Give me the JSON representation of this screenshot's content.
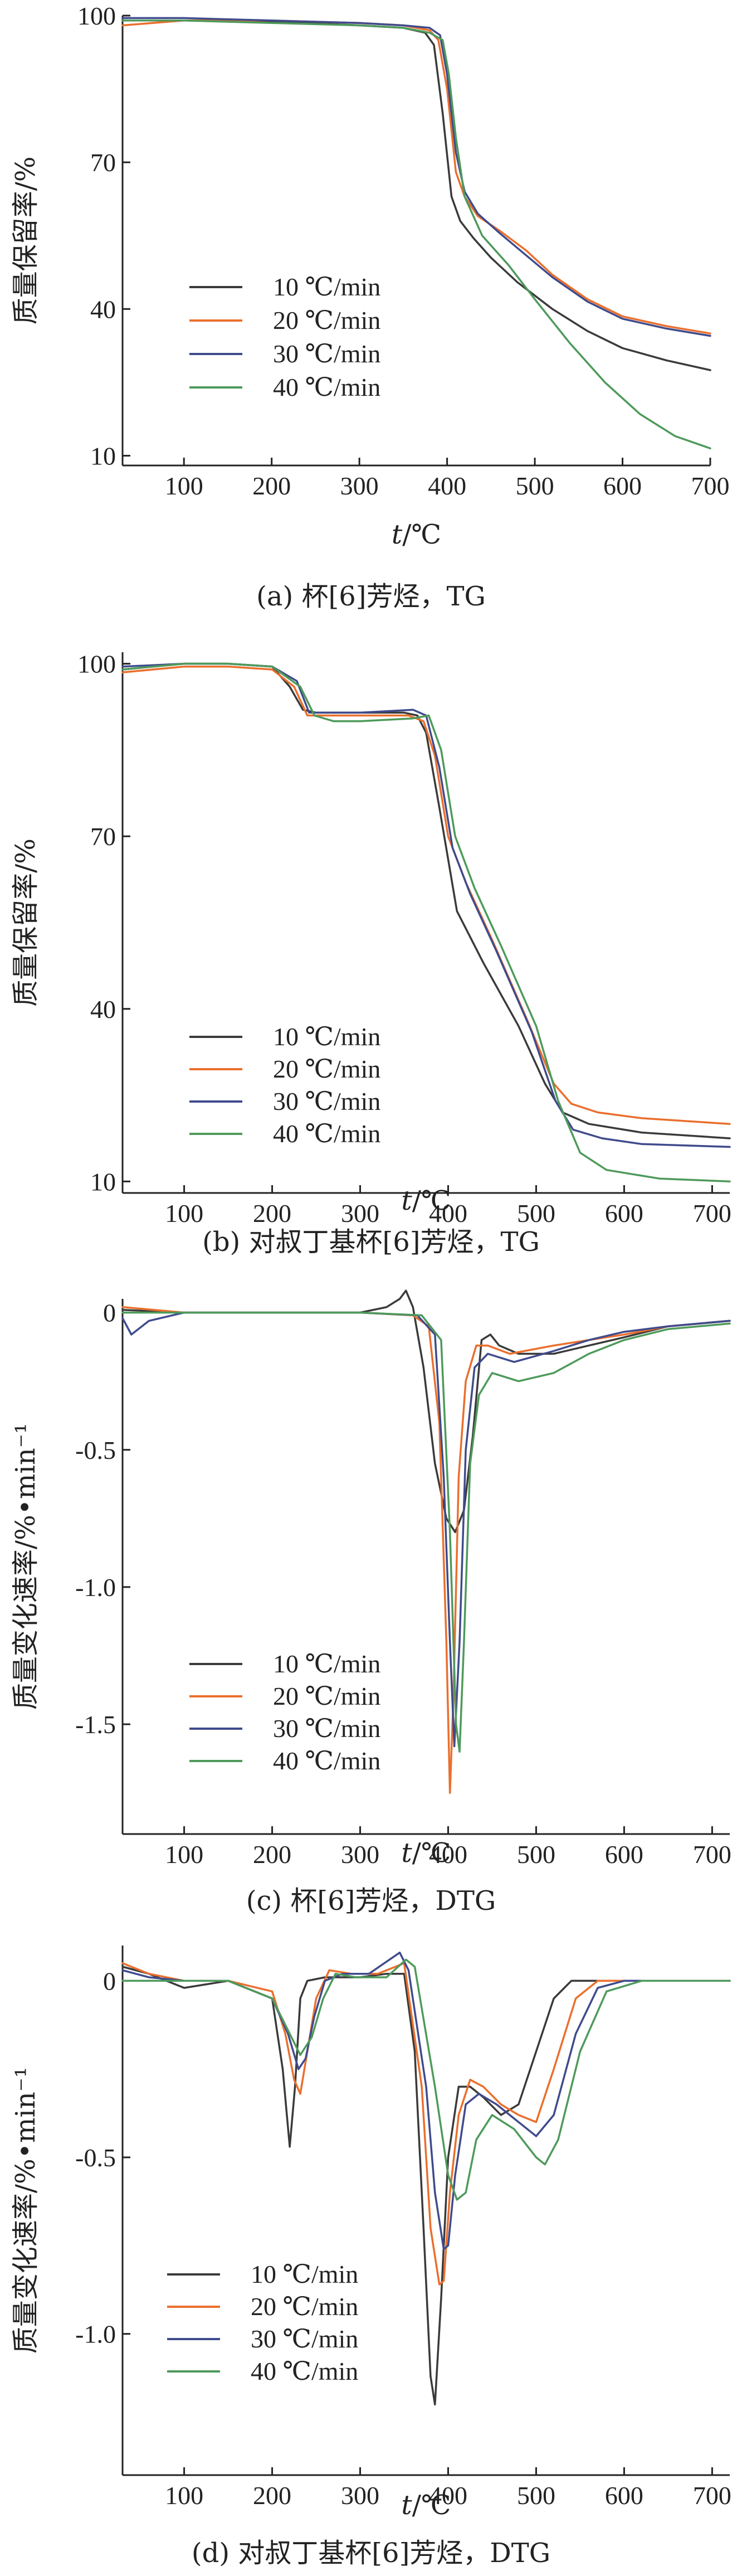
{
  "colors": {
    "10": "#3a3a3a",
    "20": "#ea6f2d",
    "30": "#3f4b8c",
    "40": "#4e9a5b"
  },
  "chart_data": [
    {
      "type": "line",
      "caption": "(a) 杯[6]芳烃，TG",
      "xlabel_italic": "t",
      "xlabel_unit": "/℃",
      "ylabel": "质量保留率/%",
      "xlim": [
        30,
        700
      ],
      "ylim": [
        8,
        100
      ],
      "xticks": [
        100,
        200,
        300,
        400,
        500,
        600,
        700
      ],
      "yticks": [
        10,
        40,
        70,
        100
      ],
      "legend": "left-middle",
      "series": [
        {
          "name": "10 ℃/min",
          "color": "#3a3a3a",
          "x": [
            30,
            100,
            200,
            300,
            350,
            375,
            385,
            395,
            405,
            415,
            430,
            450,
            480,
            520,
            560,
            600,
            650,
            700
          ],
          "y": [
            99,
            99,
            98.8,
            98,
            97.5,
            96.5,
            94,
            80,
            63,
            58,
            54.5,
            50.5,
            45.5,
            40,
            35.5,
            32,
            29.5,
            27.5
          ]
        },
        {
          "name": "20 ℃/min",
          "color": "#ea6f2d",
          "x": [
            30,
            100,
            200,
            300,
            350,
            380,
            390,
            400,
            410,
            420,
            435,
            460,
            490,
            520,
            560,
            600,
            650,
            700
          ],
          "y": [
            98,
            99,
            99,
            98.5,
            98,
            97,
            95,
            85,
            68,
            63,
            59,
            56,
            52,
            47,
            42,
            38.5,
            36.5,
            35
          ]
        },
        {
          "name": "30 ℃/min",
          "color": "#3f4b8c",
          "x": [
            30,
            100,
            200,
            300,
            350,
            380,
            392,
            400,
            410,
            420,
            435,
            460,
            490,
            520,
            560,
            600,
            650,
            700
          ],
          "y": [
            99.5,
            99.5,
            99,
            98.5,
            98,
            97.5,
            96,
            88,
            72,
            64,
            59.5,
            55.5,
            51,
            46.5,
            41.5,
            38,
            36,
            34.5
          ]
        },
        {
          "name": "40 ℃/min",
          "color": "#4e9a5b",
          "x": [
            30,
            100,
            200,
            300,
            350,
            380,
            395,
            402,
            410,
            420,
            440,
            470,
            500,
            540,
            580,
            620,
            660,
            700
          ],
          "y": [
            99,
            99,
            98.5,
            98,
            97.5,
            96.5,
            95,
            88,
            75,
            63,
            55,
            49,
            42,
            33,
            25,
            18.5,
            14,
            11.5
          ]
        }
      ]
    },
    {
      "type": "line",
      "caption": "(b) 对叔丁基杯[6]芳烃，TG",
      "xlabel_italic": "t",
      "xlabel_unit": "/℃",
      "ylabel": "质量保留率/%",
      "xlim": [
        30,
        720
      ],
      "ylim": [
        8,
        102
      ],
      "xticks": [
        100,
        200,
        300,
        400,
        500,
        600,
        700
      ],
      "yticks": [
        10,
        40,
        70,
        100
      ],
      "legend": "left-lower",
      "series": [
        {
          "name": "10 ℃/min",
          "color": "#3a3a3a",
          "x": [
            30,
            100,
            150,
            200,
            220,
            235,
            250,
            300,
            350,
            365,
            375,
            390,
            410,
            440,
            480,
            510,
            530,
            560,
            620,
            720
          ],
          "y": [
            99,
            100,
            100,
            99.5,
            96,
            92,
            91.5,
            91.5,
            91.5,
            91,
            88,
            75,
            57,
            48,
            37,
            27,
            22,
            20,
            18.5,
            17.5
          ]
        },
        {
          "name": "20 ℃/min",
          "color": "#ea6f2d",
          "x": [
            30,
            100,
            150,
            200,
            225,
            240,
            260,
            300,
            355,
            372,
            385,
            400,
            420,
            450,
            490,
            520,
            540,
            570,
            620,
            720
          ],
          "y": [
            98.5,
            99.5,
            99.5,
            99,
            96,
            91,
            91,
            91,
            91,
            90,
            84,
            70,
            62,
            52,
            38,
            27,
            23.5,
            22,
            21,
            20
          ]
        },
        {
          "name": "30 ℃/min",
          "color": "#3f4b8c",
          "x": [
            30,
            100,
            150,
            200,
            228,
            242,
            260,
            300,
            360,
            375,
            390,
            405,
            425,
            455,
            495,
            522,
            542,
            575,
            620,
            720
          ],
          "y": [
            99.5,
            100,
            100,
            99.5,
            97,
            91.5,
            91.5,
            91.5,
            92,
            91,
            82,
            68,
            60,
            50,
            36,
            24,
            19,
            17.5,
            16.5,
            16
          ]
        },
        {
          "name": "40 ℃/min",
          "color": "#4e9a5b",
          "x": [
            30,
            100,
            150,
            200,
            232,
            248,
            270,
            300,
            360,
            378,
            392,
            408,
            430,
            460,
            500,
            525,
            550,
            580,
            640,
            720
          ],
          "y": [
            99,
            100,
            100,
            99.5,
            96,
            91,
            90,
            90,
            90.5,
            91,
            85,
            70,
            61,
            51,
            37,
            24,
            15,
            12,
            10.5,
            10
          ]
        }
      ]
    },
    {
      "type": "line",
      "caption": "(c) 杯[6]芳烃，DTG",
      "xlabel_italic": "t",
      "xlabel_unit": "/℃",
      "ylabel": "质量变化速率/%•min⁻¹",
      "xlim": [
        30,
        720
      ],
      "ylim": [
        -1.9,
        0.05
      ],
      "xticks": [
        100,
        200,
        300,
        400,
        500,
        600,
        700
      ],
      "yticks": [
        0,
        -0.5,
        -1.0,
        -1.5
      ],
      "ytick_labels": [
        "0",
        "-0.5",
        "-1.0",
        "-1.5"
      ],
      "legend": "left-lower",
      "series": [
        {
          "name": "10 ℃/min",
          "color": "#3a3a3a",
          "x": [
            30,
            100,
            200,
            300,
            330,
            345,
            352,
            360,
            372,
            385,
            398,
            408,
            418,
            428,
            438,
            448,
            458,
            480,
            520,
            560,
            600,
            650,
            720
          ],
          "y": [
            0.01,
            0,
            0,
            0,
            0.02,
            0.05,
            0.08,
            0.02,
            -0.2,
            -0.55,
            -0.75,
            -0.8,
            -0.72,
            -0.45,
            -0.1,
            -0.08,
            -0.12,
            -0.15,
            -0.15,
            -0.12,
            -0.09,
            -0.05,
            -0.03
          ]
        },
        {
          "name": "20 ℃/min",
          "color": "#ea6f2d",
          "x": [
            30,
            100,
            200,
            300,
            360,
            378,
            390,
            398,
            402,
            406,
            412,
            420,
            432,
            445,
            470,
            520,
            560,
            600,
            650,
            720
          ],
          "y": [
            0.02,
            0,
            0,
            0,
            -0.01,
            -0.05,
            -0.4,
            -1.2,
            -1.75,
            -1.4,
            -0.6,
            -0.25,
            -0.12,
            -0.12,
            -0.15,
            -0.12,
            -0.1,
            -0.08,
            -0.05,
            -0.03
          ]
        },
        {
          "name": "30 ℃/min",
          "color": "#3f4b8c",
          "x": [
            30,
            40,
            60,
            100,
            200,
            300,
            365,
            385,
            395,
            402,
            407,
            413,
            420,
            430,
            445,
            475,
            520,
            560,
            600,
            650,
            720
          ],
          "y": [
            -0.02,
            -0.08,
            -0.03,
            0,
            0,
            0,
            -0.01,
            -0.08,
            -0.6,
            -1.2,
            -1.58,
            -1.2,
            -0.5,
            -0.2,
            -0.15,
            -0.18,
            -0.14,
            -0.1,
            -0.07,
            -0.05,
            -0.03
          ]
        },
        {
          "name": "40 ℃/min",
          "color": "#4e9a5b",
          "x": [
            30,
            100,
            200,
            300,
            370,
            392,
            402,
            409,
            413,
            418,
            425,
            435,
            450,
            480,
            520,
            560,
            600,
            650,
            720
          ],
          "y": [
            0,
            0,
            0,
            0,
            -0.01,
            -0.1,
            -0.8,
            -1.5,
            -1.6,
            -1.2,
            -0.55,
            -0.3,
            -0.22,
            -0.25,
            -0.22,
            -0.15,
            -0.1,
            -0.06,
            -0.04
          ]
        }
      ]
    },
    {
      "type": "line",
      "caption": "(d) 对叔丁基杯[6]芳烃，DTG",
      "xlabel_italic": "t",
      "xlabel_unit": "/℃",
      "ylabel": "质量变化速率/%•min⁻¹",
      "xlim": [
        30,
        720
      ],
      "ylim": [
        -1.4,
        0.1
      ],
      "xticks": [
        100,
        200,
        300,
        400,
        500,
        600,
        700
      ],
      "yticks": [
        0,
        -0.5,
        -1.0
      ],
      "ytick_labels": [
        "0",
        "-0.5",
        "-1.0"
      ],
      "legend": "left-lower",
      "series": [
        {
          "name": "10 ℃/min",
          "color": "#3a3a3a",
          "x": [
            30,
            60,
            100,
            150,
            180,
            200,
            212,
            220,
            226,
            232,
            240,
            260,
            300,
            330,
            350,
            362,
            372,
            380,
            385,
            392,
            400,
            412,
            425,
            440,
            460,
            480,
            500,
            520,
            540,
            560,
            600,
            720
          ],
          "y": [
            0.04,
            0.02,
            -0.02,
            0,
            -0.03,
            -0.05,
            -0.25,
            -0.47,
            -0.3,
            -0.05,
            0,
            0.01,
            0.01,
            0.02,
            0.02,
            -0.2,
            -0.7,
            -1.12,
            -1.2,
            -0.9,
            -0.5,
            -0.3,
            -0.3,
            -0.33,
            -0.38,
            -0.35,
            -0.2,
            -0.05,
            0,
            0,
            0,
            0
          ]
        },
        {
          "name": "20 ℃/min",
          "color": "#ea6f2d",
          "x": [
            30,
            60,
            100,
            150,
            200,
            215,
            225,
            232,
            240,
            250,
            265,
            290,
            320,
            350,
            370,
            380,
            390,
            395,
            402,
            412,
            425,
            440,
            460,
            480,
            500,
            520,
            545,
            570,
            600,
            720
          ],
          "y": [
            0.05,
            0.02,
            0,
            0,
            -0.03,
            -0.15,
            -0.28,
            -0.32,
            -0.2,
            -0.05,
            0.03,
            0.02,
            0.02,
            0.05,
            -0.3,
            -0.7,
            -0.86,
            -0.85,
            -0.6,
            -0.38,
            -0.28,
            -0.3,
            -0.35,
            -0.38,
            -0.4,
            -0.25,
            -0.05,
            0,
            0,
            0
          ]
        },
        {
          "name": "30 ℃/min",
          "color": "#3f4b8c",
          "x": [
            30,
            60,
            100,
            150,
            200,
            218,
            230,
            238,
            248,
            260,
            280,
            310,
            345,
            355,
            375,
            385,
            395,
            400,
            408,
            420,
            435,
            455,
            480,
            500,
            520,
            545,
            570,
            600,
            720
          ],
          "y": [
            0.03,
            0.01,
            0,
            0,
            -0.05,
            -0.15,
            -0.25,
            -0.22,
            -0.1,
            0,
            0.02,
            0.02,
            0.08,
            0.03,
            -0.3,
            -0.6,
            -0.76,
            -0.75,
            -0.55,
            -0.35,
            -0.32,
            -0.35,
            -0.4,
            -0.44,
            -0.38,
            -0.15,
            -0.02,
            0,
            0
          ]
        },
        {
          "name": "40 ℃/min",
          "color": "#4e9a5b",
          "x": [
            30,
            60,
            100,
            150,
            200,
            220,
            232,
            245,
            258,
            272,
            295,
            330,
            352,
            362,
            385,
            400,
            410,
            420,
            432,
            450,
            475,
            500,
            510,
            525,
            550,
            580,
            620,
            720
          ],
          "y": [
            0,
            0,
            0,
            0,
            -0.05,
            -0.15,
            -0.21,
            -0.16,
            -0.05,
            0.02,
            0.01,
            0.01,
            0.06,
            0.04,
            -0.3,
            -0.55,
            -0.62,
            -0.6,
            -0.45,
            -0.38,
            -0.42,
            -0.5,
            -0.52,
            -0.45,
            -0.2,
            -0.03,
            0,
            0
          ]
        }
      ]
    }
  ]
}
